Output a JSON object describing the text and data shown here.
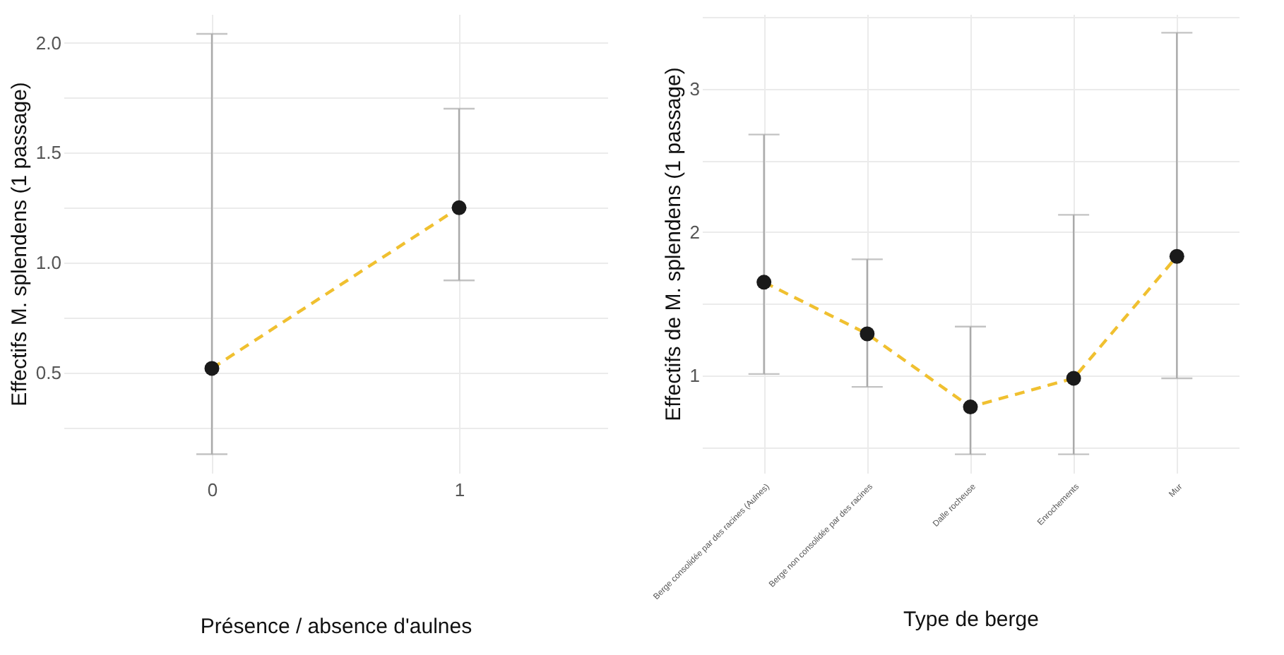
{
  "chart_data": [
    {
      "type": "line",
      "xlabel": "Présence / absence d'aulnes",
      "ylabel": "Effectifs M. splendens (1 passage)",
      "categories": [
        "0",
        "1"
      ],
      "ylim": [
        0.045,
        2.13
      ],
      "yticks": [
        {
          "value": 0.25,
          "label": null
        },
        0.5,
        {
          "value": 0.75,
          "label": null
        },
        {
          "value": 1,
          "label": "1.0"
        },
        {
          "value": 1.25,
          "label": null
        },
        1.5,
        {
          "value": 1.75,
          "label": null
        },
        {
          "value": 2,
          "label": "2.0"
        }
      ],
      "grid": true,
      "line_style": "dashed",
      "series": [
        {
          "type": "line",
          "color": "#f0c030",
          "marker": "none",
          "values": [
            0.52,
            1.25
          ]
        },
        {
          "type": "scatter",
          "marker": "circle",
          "color": "#1a1a1a",
          "values": [
            0.52,
            1.25
          ],
          "errors": [
            [
              0.13,
              2.04
            ],
            [
              0.92,
              1.7
            ]
          ]
        }
      ]
    },
    {
      "type": "line",
      "xlabel": "Type de berge",
      "ylabel": "Effectifs de M. splendens (1 passage)",
      "categories": [
        "Berge consolidée par des racines (Aulnes)",
        "Berge non consolidée par des racines",
        "Dalle rocheuse",
        "Enrochements",
        "Mur"
      ],
      "ylim": [
        0.32,
        3.52
      ],
      "yticks": [
        {
          "value": 0.5,
          "label": null
        },
        1,
        {
          "value": 1.5,
          "label": null
        },
        2,
        {
          "value": 2.5,
          "label": null
        },
        3,
        {
          "value": 3.5,
          "label": null
        }
      ],
      "grid": true,
      "line_style": "dashed",
      "series": [
        {
          "type": "line",
          "color": "#f0c030",
          "marker": "none",
          "values": [
            1.65,
            1.29,
            0.78,
            0.98,
            1.83
          ]
        },
        {
          "type": "scatter",
          "marker": "circle",
          "color": "#1a1a1a",
          "values": [
            1.65,
            1.29,
            0.78,
            0.98,
            1.83
          ],
          "errors": [
            [
              1.01,
              2.68
            ],
            [
              0.92,
              1.81
            ],
            [
              0.45,
              1.34
            ],
            [
              0.45,
              2.12
            ],
            [
              0.98,
              3.39
            ]
          ]
        }
      ]
    }
  ]
}
